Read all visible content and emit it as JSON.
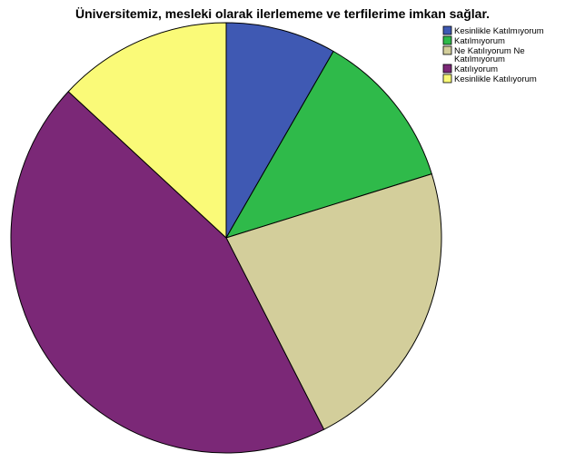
{
  "chart_data": {
    "type": "pie",
    "title": "Üniversitemiz, mesleki olarak ilerlememe ve terfilerime imkan sağlar.",
    "categories": [
      "Kesinlikle Katılmıyorum",
      "Katılmıyorum",
      "Ne Katılıyorum Ne Katılmıyorum",
      "Katılıyorum",
      "Kesinlikle Katılıyorum"
    ],
    "values": [
      8.3,
      11.9,
      22.3,
      44.4,
      13.1
    ],
    "unit": "percent",
    "colors": [
      "#3f59b3",
      "#2fba4a",
      "#d3ce9b",
      "#7b2877",
      "#fafa78"
    ],
    "start_angle_deg": 0,
    "direction": "clockwise",
    "legend_position": "top-right",
    "legend_labels": [
      [
        "Kesinlikle Katılmıyorum"
      ],
      [
        "Katılmıyorum"
      ],
      [
        "Ne Katılıyorum Ne",
        "Katılmıyorum"
      ],
      [
        "Katılıyorum"
      ],
      [
        "Kesinlikle Katılıyorum"
      ]
    ]
  }
}
